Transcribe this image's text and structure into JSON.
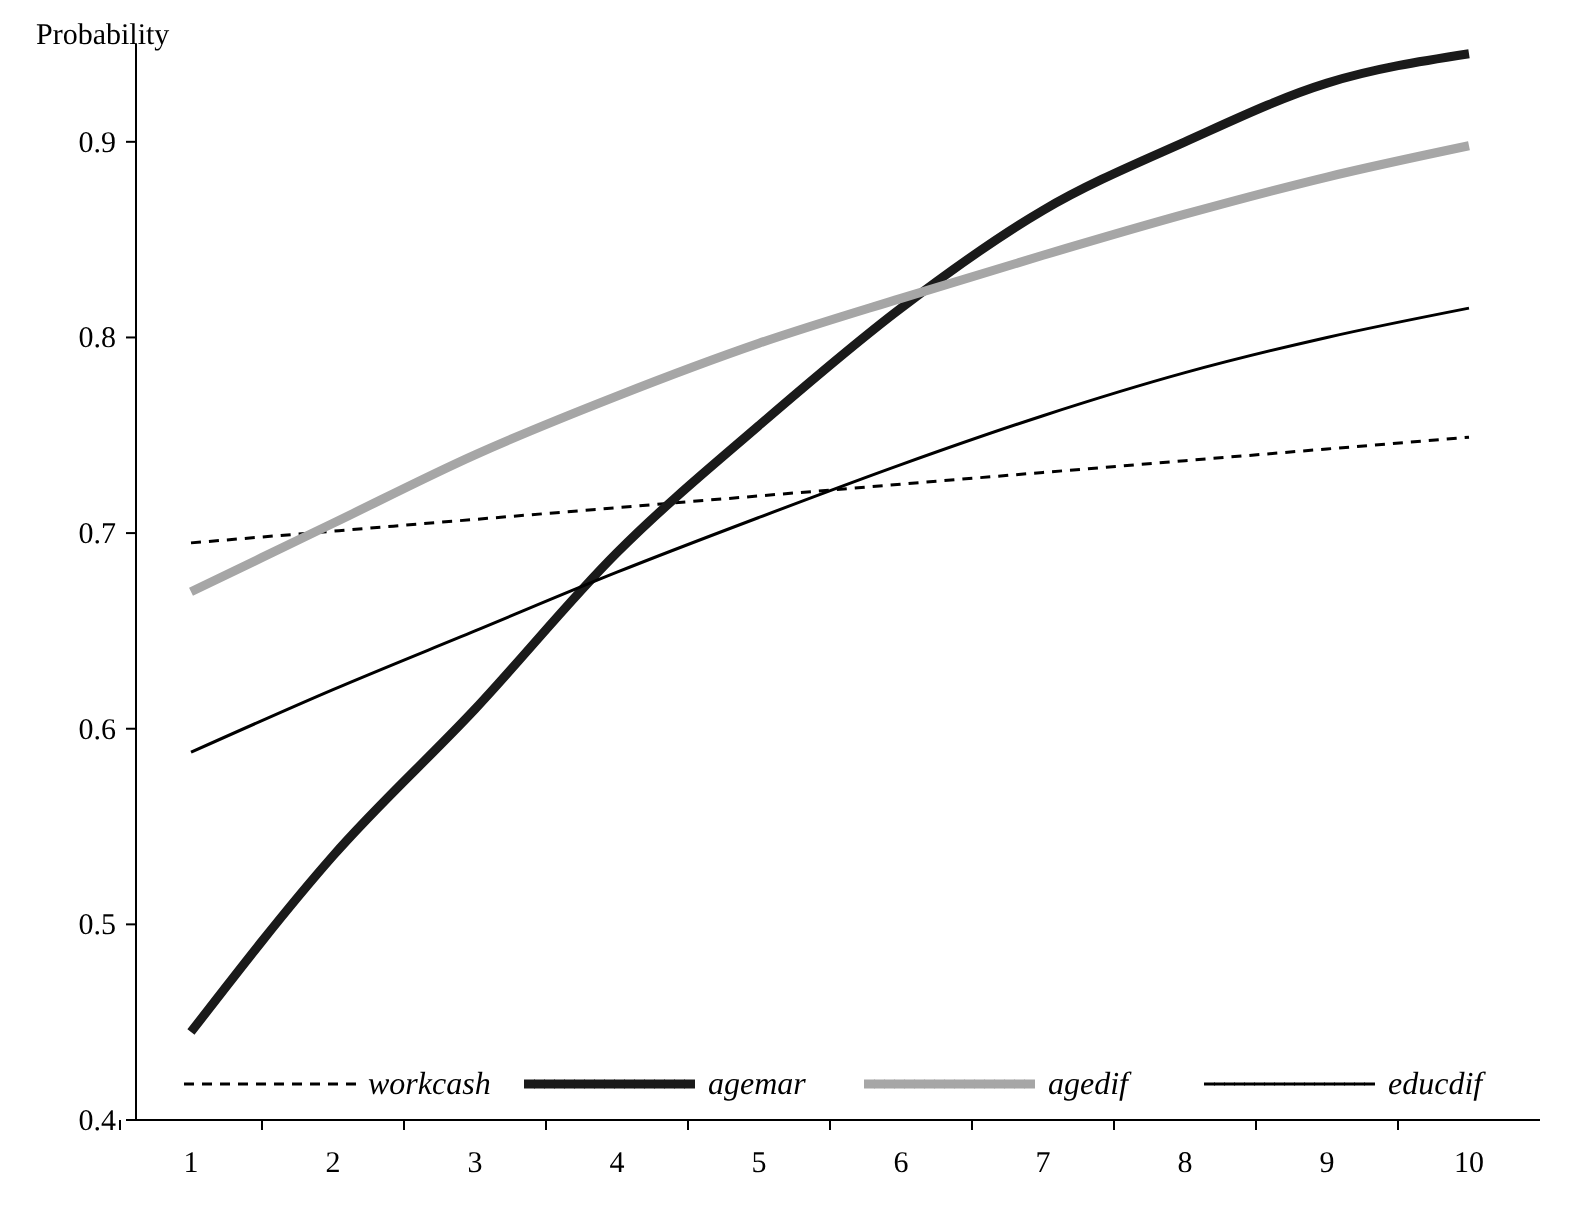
{
  "chart_data": {
    "type": "line",
    "ylabel": "Probability",
    "categories": [
      "1",
      "2",
      "3",
      "4",
      "5",
      "6",
      "7",
      "8",
      "9",
      "10"
    ],
    "ylim": [
      0.4,
      0.95
    ],
    "yticks": [
      0.4,
      0.5,
      0.6,
      0.7,
      0.8,
      0.9
    ],
    "legend": "bottom",
    "series": [
      {
        "name": "workcash",
        "color": "#000000",
        "line_style": "dashed",
        "values": [
          0.695,
          0.701,
          0.707,
          0.713,
          0.719,
          0.725,
          0.731,
          0.737,
          0.743,
          0.749
        ]
      },
      {
        "name": "agemar",
        "color": "#1a1a1a",
        "values": [
          0.445,
          0.535,
          0.61,
          0.69,
          0.755,
          0.815,
          0.865,
          0.9,
          0.93,
          0.945
        ]
      },
      {
        "name": "agedif",
        "color": "#a6a6a6",
        "values": [
          0.67,
          0.705,
          0.74,
          0.77,
          0.797,
          0.82,
          0.842,
          0.863,
          0.882,
          0.898
        ]
      },
      {
        "name": "educdif",
        "color": "#000000",
        "values": [
          0.588,
          0.62,
          0.65,
          0.68,
          0.708,
          0.735,
          0.76,
          0.782,
          0.8,
          0.815
        ]
      }
    ]
  }
}
